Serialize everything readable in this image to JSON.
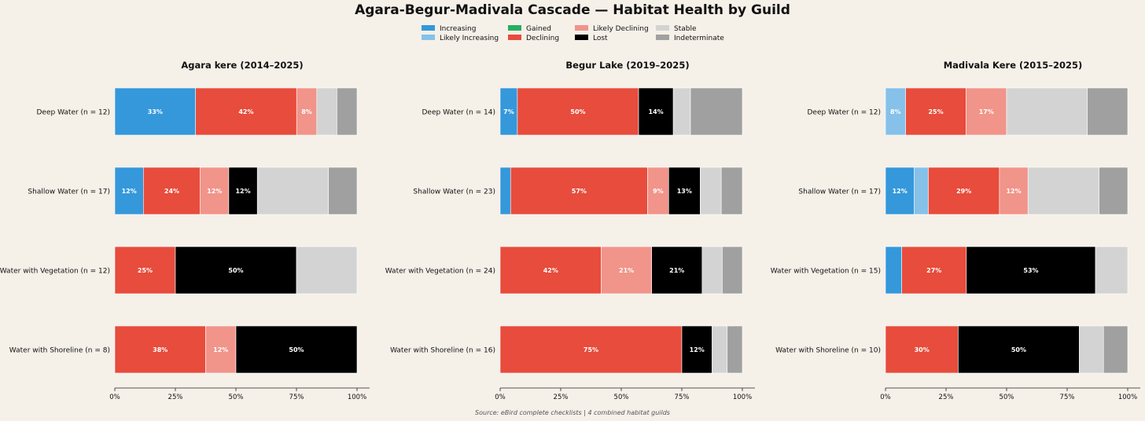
{
  "title": "Agara-Begur-Madivala Cascade — Habitat Health by Guild",
  "source": "Source: eBird complete checklists  |  4 combined habitat guilds",
  "legend": [
    {
      "label": "Increasing",
      "color": "#3498db"
    },
    {
      "label": "Likely Increasing",
      "color": "#85c1e9"
    },
    {
      "label": "Gained",
      "color": "#27ae60"
    },
    {
      "label": "Declining",
      "color": "#e74c3c"
    },
    {
      "label": "Likely Declining",
      "color": "#f1948a"
    },
    {
      "label": "Lost",
      "color": "#000000"
    },
    {
      "label": "Stable",
      "color": "#d3d3d3"
    },
    {
      "label": "Indeterminate",
      "color": "#a0a0a0"
    }
  ],
  "chart_data": [
    {
      "type": "bar",
      "orientation": "horizontal-stacked-100",
      "title": "Agara kere (2014–2025)",
      "x_ticks": [
        "0%",
        "25%",
        "50%",
        "75%",
        "100%"
      ],
      "xlim": [
        0,
        100
      ],
      "categories": [
        "Deep Water",
        "Shallow Water",
        "Water with Vegetation",
        "Water with Shoreline"
      ],
      "n": [
        12,
        17,
        12,
        8
      ],
      "series": [
        {
          "name": "Increasing",
          "values": [
            33.3,
            11.8,
            0,
            0
          ]
        },
        {
          "name": "Likely Increasing",
          "values": [
            0,
            0,
            0,
            0
          ]
        },
        {
          "name": "Gained",
          "values": [
            0,
            0,
            0,
            0
          ]
        },
        {
          "name": "Declining",
          "values": [
            41.7,
            23.5,
            25,
            37.5
          ]
        },
        {
          "name": "Likely Declining",
          "values": [
            8.3,
            11.8,
            0,
            12.5
          ]
        },
        {
          "name": "Lost",
          "values": [
            0,
            11.8,
            50,
            50
          ]
        },
        {
          "name": "Stable",
          "values": [
            8.3,
            29.4,
            25,
            0
          ]
        },
        {
          "name": "Indeterminate",
          "values": [
            8.3,
            11.8,
            0,
            0
          ]
        }
      ],
      "labels": [
        [
          "33%",
          "",
          "",
          "42%",
          "8%",
          "",
          "",
          ""
        ],
        [
          "12%",
          "",
          "",
          "24%",
          "12%",
          "12%",
          "",
          ""
        ],
        [
          "",
          "",
          "",
          "25%",
          "",
          "50%",
          "",
          ""
        ],
        [
          "",
          "",
          "",
          "38%",
          "12%",
          "50%",
          "",
          ""
        ]
      ]
    },
    {
      "type": "bar",
      "orientation": "horizontal-stacked-100",
      "title": "Begur Lake (2019–2025)",
      "x_ticks": [
        "0%",
        "25%",
        "50%",
        "75%",
        "100%"
      ],
      "xlim": [
        0,
        100
      ],
      "categories": [
        "Deep Water",
        "Shallow Water",
        "Water with Vegetation",
        "Water with Shoreline"
      ],
      "n": [
        14,
        23,
        24,
        16
      ],
      "series": [
        {
          "name": "Increasing",
          "values": [
            7.1,
            4.3,
            0,
            0
          ]
        },
        {
          "name": "Likely Increasing",
          "values": [
            0,
            0,
            0,
            0
          ]
        },
        {
          "name": "Gained",
          "values": [
            0,
            0,
            0,
            0
          ]
        },
        {
          "name": "Declining",
          "values": [
            50,
            56.5,
            41.7,
            75
          ]
        },
        {
          "name": "Likely Declining",
          "values": [
            0,
            8.7,
            20.8,
            0
          ]
        },
        {
          "name": "Lost",
          "values": [
            14.3,
            13,
            20.8,
            12.5
          ]
        },
        {
          "name": "Stable",
          "values": [
            7.1,
            8.7,
            8.3,
            6.25
          ]
        },
        {
          "name": "Indeterminate",
          "values": [
            21.4,
            8.7,
            8.3,
            6.25
          ]
        }
      ],
      "labels": [
        [
          "7%",
          "",
          "",
          "50%",
          "",
          "14%",
          "",
          ""
        ],
        [
          "",
          "",
          "",
          "57%",
          "9%",
          "13%",
          "",
          ""
        ],
        [
          "",
          "",
          "",
          "42%",
          "21%",
          "21%",
          "",
          ""
        ],
        [
          "",
          "",
          "",
          "75%",
          "",
          "12%",
          "",
          ""
        ]
      ]
    },
    {
      "type": "bar",
      "orientation": "horizontal-stacked-100",
      "title": "Madivala Kere (2015–2025)",
      "x_ticks": [
        "0%",
        "25%",
        "50%",
        "75%",
        "100%"
      ],
      "xlim": [
        0,
        100
      ],
      "categories": [
        "Deep Water",
        "Shallow Water",
        "Water with Vegetation",
        "Water with Shoreline"
      ],
      "n": [
        12,
        17,
        15,
        10
      ],
      "series": [
        {
          "name": "Increasing",
          "values": [
            0,
            11.8,
            6.7,
            0
          ]
        },
        {
          "name": "Likely Increasing",
          "values": [
            8.3,
            5.9,
            0,
            0
          ]
        },
        {
          "name": "Gained",
          "values": [
            0,
            0,
            0,
            0
          ]
        },
        {
          "name": "Declining",
          "values": [
            25,
            29.4,
            26.7,
            30
          ]
        },
        {
          "name": "Likely Declining",
          "values": [
            16.7,
            11.8,
            0,
            0
          ]
        },
        {
          "name": "Lost",
          "values": [
            0,
            0,
            53.3,
            50
          ]
        },
        {
          "name": "Stable",
          "values": [
            33.3,
            29.4,
            13.3,
            10
          ]
        },
        {
          "name": "Indeterminate",
          "values": [
            16.7,
            11.8,
            0,
            10
          ]
        }
      ],
      "labels": [
        [
          "",
          "8%",
          "",
          "25%",
          "17%",
          "",
          "",
          ""
        ],
        [
          "12%",
          "",
          "",
          "29%",
          "12%",
          "",
          "",
          ""
        ],
        [
          "",
          "",
          "",
          "27%",
          "",
          "53%",
          "",
          ""
        ],
        [
          "",
          "",
          "",
          "30%",
          "",
          "50%",
          "",
          ""
        ]
      ]
    }
  ]
}
